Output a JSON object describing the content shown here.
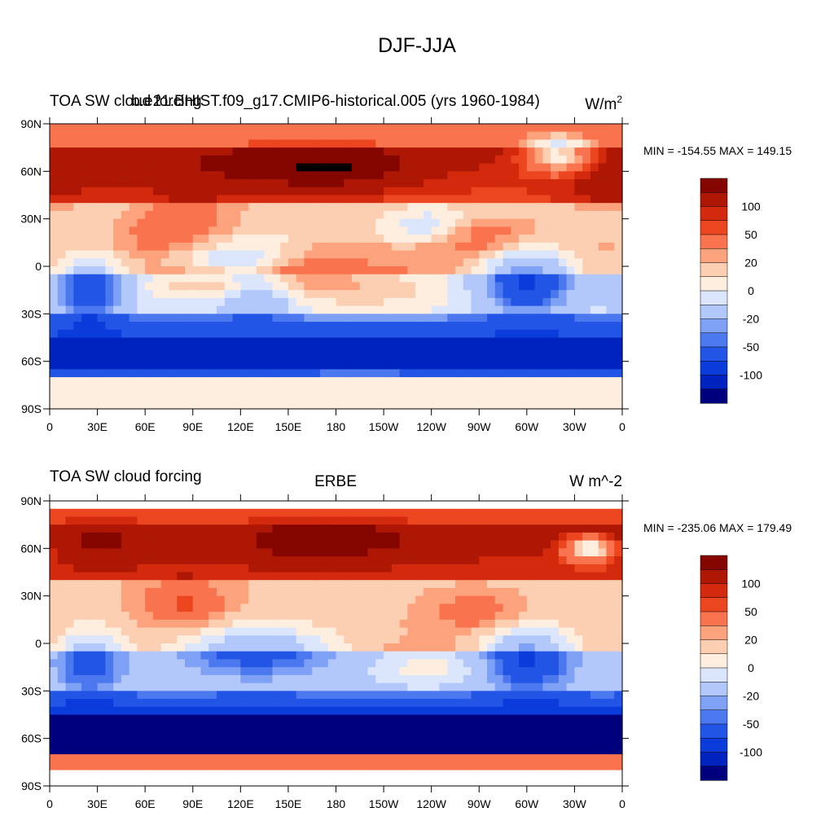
{
  "figure": {
    "title": "DJF-JJA"
  },
  "colors": [
    "#00007f",
    "#0023bf",
    "#0a3cdc",
    "#2255e6",
    "#4b78ee",
    "#7ea0f5",
    "#b3c8fa",
    "#dbe6fc",
    "#fdeedf",
    "#fdcfb2",
    "#fca27c",
    "#f9744e",
    "#ec4620",
    "#d3290d",
    "#ad1704",
    "#850600"
  ],
  "colorbar": {
    "levels": [
      -150,
      -120,
      -100,
      -80,
      -60,
      -50,
      -40,
      -20,
      -10,
      0,
      10,
      20,
      40,
      50,
      60,
      80,
      100,
      120,
      150
    ],
    "labels": [
      "100",
      "50",
      "20",
      "0",
      "-20",
      "-50",
      "-100"
    ]
  },
  "axes": {
    "lat_ticks": [
      "90N",
      "60N",
      "30N",
      "0",
      "30S",
      "60S",
      "90S"
    ],
    "lon_ticks": [
      "0",
      "30E",
      "60E",
      "90E",
      "120E",
      "150E",
      "180",
      "150W",
      "120W",
      "90W",
      "60W",
      "30W",
      "0"
    ]
  },
  "panels": [
    {
      "title_left": "TOA SW cloud forcing",
      "title_center": "b.e21.BHIST.f09_g17.CMIP6-historical.005 (yrs 1960-1984)",
      "units_base": "W/m",
      "units_sup": "2",
      "minmax": "MIN = -154.55 MAX = 149.15"
    },
    {
      "title_left": "TOA SW cloud forcing",
      "title_center": "ERBE",
      "units_base": "W m^-2",
      "units_sup": "",
      "minmax": "MIN = -235.06 MAX = 179.49"
    }
  ],
  "chart_data": [
    {
      "type": "heatmap",
      "title": "DJF-JJA",
      "subtitle": "b.e21.BHIST.f09_g17.CMIP6-historical.005 (yrs 1960-1984)",
      "variable": "TOA SW cloud forcing",
      "units": "W/m2",
      "x_ticks": [
        "0",
        "30E",
        "60E",
        "90E",
        "120E",
        "150E",
        "180",
        "150W",
        "120W",
        "90W",
        "60W",
        "30W",
        "0"
      ],
      "y_ticks": [
        "90N",
        "60N",
        "30N",
        "0",
        "30S",
        "60S",
        "90S"
      ],
      "xlim": [
        0,
        360
      ],
      "ylim": [
        -90,
        90
      ],
      "min": -154.55,
      "max": 149.15
    },
    {
      "type": "heatmap",
      "title": "DJF-JJA",
      "subtitle": "ERBE",
      "variable": "TOA SW cloud forcing",
      "units": "W m^-2",
      "x_ticks": [
        "0",
        "30E",
        "60E",
        "90E",
        "120E",
        "150E",
        "180",
        "150W",
        "120W",
        "90W",
        "60W",
        "30W",
        "0"
      ],
      "y_ticks": [
        "90N",
        "60N",
        "30N",
        "0",
        "30S",
        "60S",
        "90S"
      ],
      "xlim": [
        0,
        360
      ],
      "ylim": [
        -90,
        90
      ],
      "min": -235.06,
      "max": 179.49
    }
  ]
}
